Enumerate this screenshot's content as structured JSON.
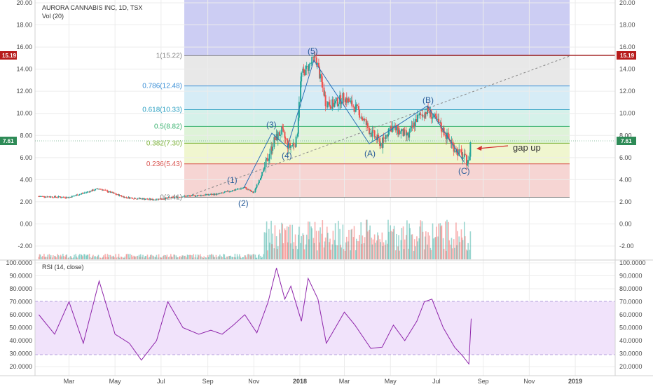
{
  "header": {
    "title": "AURORA CANNABIS INC, 1D, TSX",
    "volume_indicator": "Vol (20)",
    "rsi_indicator": "RSI (14, close)"
  },
  "price_axis": {
    "left_ticks": [
      "20.00",
      "18.00",
      "16.00",
      "14.00",
      "12.00",
      "10.00",
      "8.00",
      "6.00",
      "4.00",
      "2.00",
      "0.00",
      "-2.00"
    ],
    "right_ticks": [
      "20.00",
      "18.00",
      "16.00",
      "14.00",
      "12.00",
      "10.00",
      "8.00",
      "6.00",
      "4.00",
      "2.00",
      "0.00",
      "-2.00"
    ],
    "badge_high": "15.19",
    "badge_last": "7.61",
    "badge_high_color": "#b71c1c",
    "badge_last_color": "#2e8b57"
  },
  "rsi_axis": {
    "left_ticks": [
      "100.0000",
      "90.0000",
      "80.0000",
      "70.0000",
      "60.0000",
      "50.0000",
      "40.0000",
      "30.0000",
      "20.0000"
    ],
    "right_ticks": [
      "100.0000",
      "90.0000",
      "80.0000",
      "70.0000",
      "60.0000",
      "50.0000",
      "40.0000",
      "30.0000",
      "20.0000"
    ],
    "upper_band": 70,
    "lower_band": 30
  },
  "time_axis": {
    "labels": [
      "Mar",
      "May",
      "Jul",
      "Sep",
      "Nov",
      "2018",
      "Mar",
      "May",
      "Jul",
      "Sep",
      "Nov",
      "2019"
    ]
  },
  "fibonacci": {
    "levels": [
      {
        "label": "1(15.22)",
        "price": 15.22,
        "color": "#888888"
      },
      {
        "label": "0.786(12.48)",
        "price": 12.48,
        "color": "#3b8fd6"
      },
      {
        "label": "0.618(10.33)",
        "price": 10.33,
        "color": "#2a9fc1"
      },
      {
        "label": "0.5(8.82)",
        "price": 8.82,
        "color": "#3cb371"
      },
      {
        "label": "0.382(7.30)",
        "price": 7.3,
        "color": "#7fb33a"
      },
      {
        "label": "0.236(5.43)",
        "price": 5.43,
        "color": "#d9534f"
      },
      {
        "label": "0(2.41)",
        "price": 2.41,
        "color": "#888888"
      }
    ]
  },
  "waves": {
    "w1": "(1)",
    "w2": "(2)",
    "w3": "(3)",
    "w4": "(4)",
    "w5": "(5)",
    "wa": "(A)",
    "wb": "(B)",
    "wc": "(C)"
  },
  "annotation": {
    "gap_label": "gap up"
  },
  "colors": {
    "up": "#26a69a",
    "down": "#ef5350",
    "rsi_line": "#8e24aa",
    "fib_top": "#c8c8f2",
    "grid": "#eeeeee"
  },
  "chart_data": [
    {
      "type": "line",
      "title": "AURORA CANNABIS INC, 1D, TSX",
      "series": [
        {
          "values": [
            [
              "2017-01-20",
              2.5
            ],
            [
              "2017-03-01",
              2.4
            ],
            [
              "2017-04-10",
              3.2
            ],
            [
              "2017-05-15",
              2.4
            ],
            [
              "2017-06-20",
              2.2
            ],
            [
              "2017-08-01",
              2.5
            ],
            [
              "2017-09-15",
              2.7
            ],
            [
              "2017-10-20",
              3.3
            ],
            [
              "2017-11-01",
              2.8
            ],
            [
              "2017-11-15",
              5.0
            ],
            [
              "2017-11-28",
              7.5
            ],
            [
              "2017-12-08",
              8.4
            ],
            [
              "2017-12-18",
              6.9
            ],
            [
              "2017-12-28",
              7.5
            ],
            [
              "2018-01-03",
              13.5
            ],
            [
              "2018-01-10",
              14.0
            ],
            [
              "2018-01-22",
              15.1
            ],
            [
              "2018-02-05",
              11.0
            ],
            [
              "2018-02-15",
              10.8
            ],
            [
              "2018-03-01",
              11.5
            ],
            [
              "2018-03-20",
              10.2
            ],
            [
              "2018-04-05",
              8.3
            ],
            [
              "2018-04-20",
              7.2
            ],
            [
              "2018-05-01",
              8.8
            ],
            [
              "2018-05-25",
              7.9
            ],
            [
              "2018-06-05",
              9.5
            ],
            [
              "2018-06-20",
              10.3
            ],
            [
              "2018-07-05",
              9.0
            ],
            [
              "2018-07-25",
              6.9
            ],
            [
              "2018-08-13",
              5.5
            ],
            [
              "2018-08-16",
              7.61
            ]
          ]
        }
      ],
      "ylim": [
        -2,
        20
      ]
    },
    {
      "type": "line",
      "title": "RSI (14, close)",
      "series": [
        {
          "values": [
            [
              "2017-01-20",
              60
            ],
            [
              "2017-02-10",
              45
            ],
            [
              "2017-03-01",
              70
            ],
            [
              "2017-03-20",
              38
            ],
            [
              "2017-04-10",
              86
            ],
            [
              "2017-05-01",
              45
            ],
            [
              "2017-05-20",
              38
            ],
            [
              "2017-06-05",
              25
            ],
            [
              "2017-06-25",
              40
            ],
            [
              "2017-07-10",
              70
            ],
            [
              "2017-07-30",
              50
            ],
            [
              "2017-08-20",
              45
            ],
            [
              "2017-09-05",
              48
            ],
            [
              "2017-09-20",
              45
            ],
            [
              "2017-10-05",
              52
            ],
            [
              "2017-10-20",
              60
            ],
            [
              "2017-11-05",
              46
            ],
            [
              "2017-11-20",
              70
            ],
            [
              "2017-12-01",
              96
            ],
            [
              "2017-12-12",
              72
            ],
            [
              "2017-12-20",
              82
            ],
            [
              "2018-01-03",
              55
            ],
            [
              "2018-01-12",
              88
            ],
            [
              "2018-01-25",
              72
            ],
            [
              "2018-02-05",
              38
            ],
            [
              "2018-02-15",
              48
            ],
            [
              "2018-03-01",
              62
            ],
            [
              "2018-03-15",
              52
            ],
            [
              "2018-04-05",
              34
            ],
            [
              "2018-04-20",
              35
            ],
            [
              "2018-05-05",
              52
            ],
            [
              "2018-05-20",
              40
            ],
            [
              "2018-06-05",
              55
            ],
            [
              "2018-06-15",
              70
            ],
            [
              "2018-06-25",
              72
            ],
            [
              "2018-07-10",
              50
            ],
            [
              "2018-07-25",
              35
            ],
            [
              "2018-08-05",
              28
            ],
            [
              "2018-08-13",
              22
            ],
            [
              "2018-08-16",
              57
            ]
          ]
        }
      ],
      "ylim": [
        17,
        100
      ]
    }
  ]
}
